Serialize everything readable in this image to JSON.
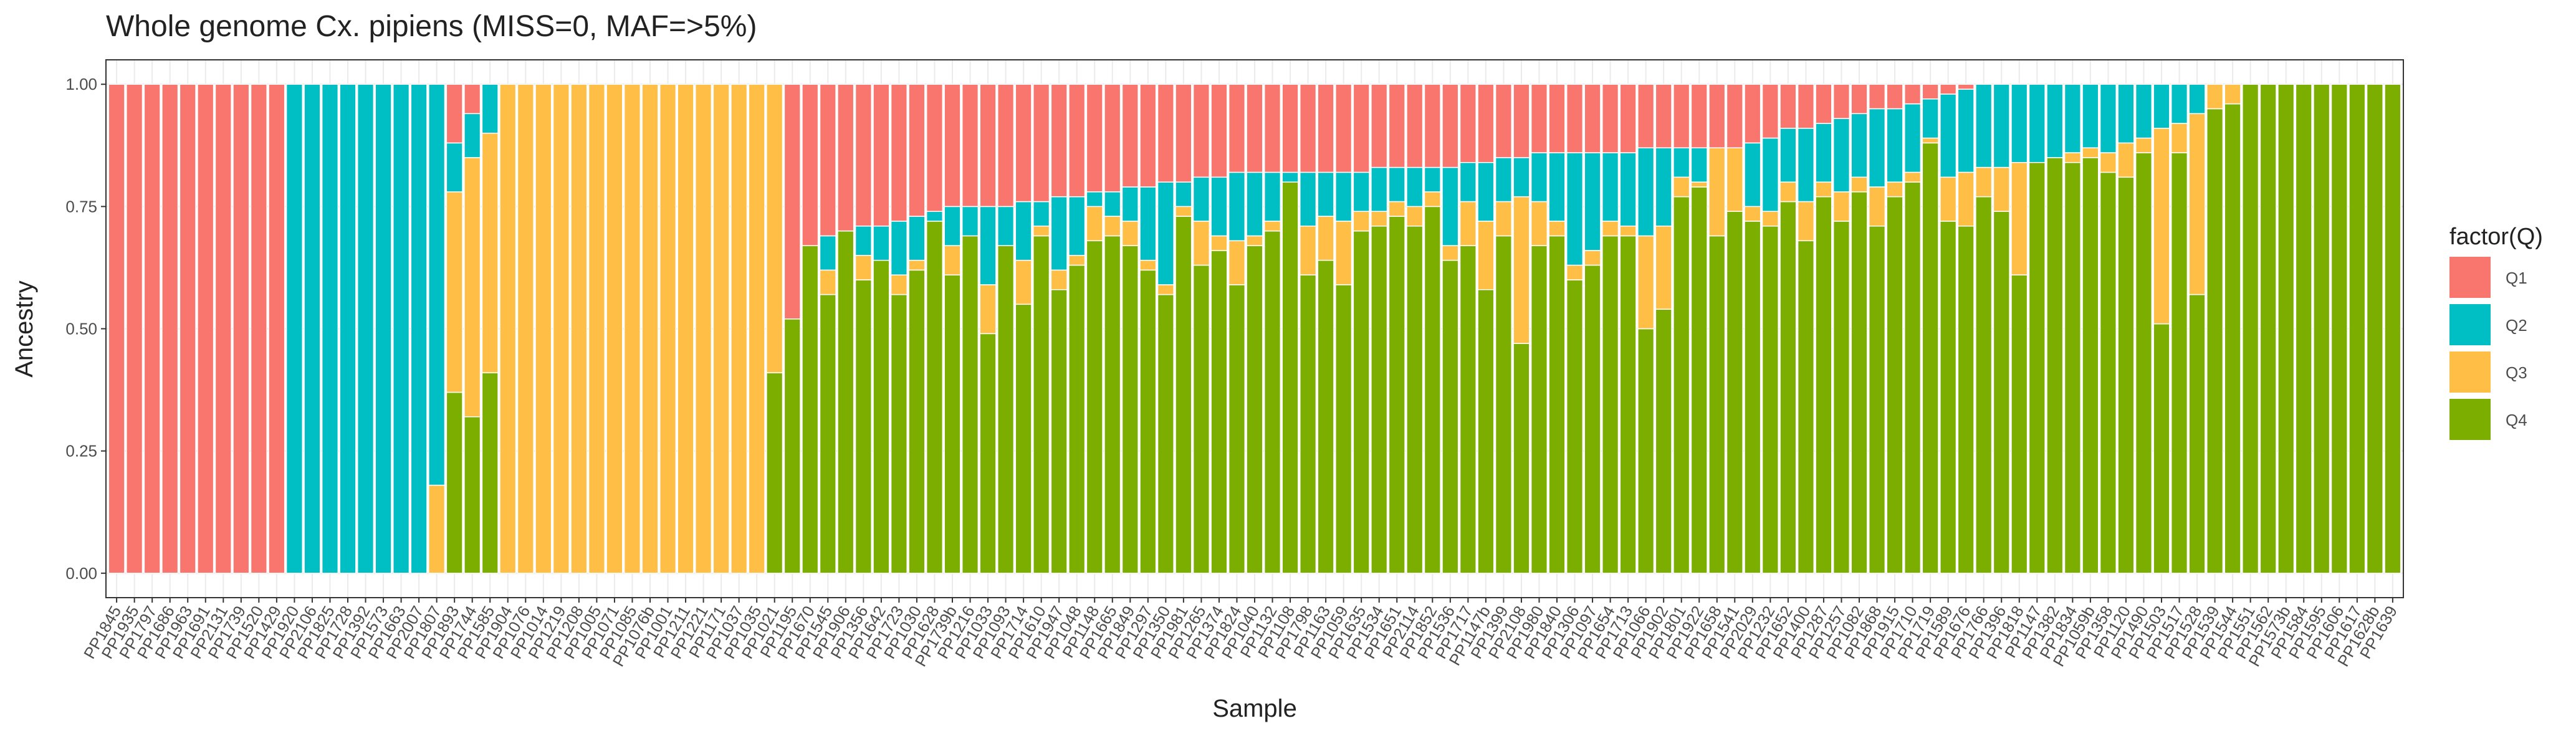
{
  "chart_data": {
    "type": "bar",
    "stacked": true,
    "title": "Whole genome Cx. pipiens (MISS=0, MAF=>5%)",
    "x_label": "Sample",
    "y_label": "Ancestry",
    "legend_title": "factor(Q)",
    "legend": "right",
    "grid": true,
    "ylim": [
      -0.05,
      1.05
    ],
    "yticks": [
      {
        "value": 0,
        "label": "0.00"
      },
      {
        "value": 0.25,
        "label": "0.25"
      },
      {
        "value": 0.5,
        "label": "0.50"
      },
      {
        "value": 0.75,
        "label": "0.75"
      },
      {
        "value": 1,
        "label": "1.00"
      }
    ],
    "categories": [
      "PP1845",
      "PP1935",
      "PP1797",
      "PP1686",
      "PP1963",
      "PP1691",
      "PP2131",
      "PP1739",
      "PP1520",
      "PP1429",
      "PP1920",
      "PP2106",
      "PP1825",
      "PP1728",
      "PP1392",
      "PP1573",
      "PP1663",
      "PP2007",
      "PP1807",
      "PP1893",
      "PP1744",
      "PP1585",
      "PP1904",
      "PP1076",
      "PP1014",
      "PP1219",
      "PP1208",
      "PP1005",
      "PP1071",
      "PP1085",
      "PP1076b",
      "PP1001",
      "PP1211",
      "PP1221",
      "PP1171",
      "PP1037",
      "PP1035",
      "PP1021",
      "PP1195",
      "PP1670",
      "PP1545",
      "PP1906",
      "PP1356",
      "PP1642",
      "PP1723",
      "PP1030",
      "PP1628",
      "PP1739b",
      "PP1216",
      "PP1033",
      "PP1093",
      "PP1714",
      "PP1610",
      "PP1947",
      "PP1048",
      "PP1148",
      "PP1665",
      "PP1849",
      "PP1297",
      "PP1350",
      "PP1981",
      "PP1265",
      "PP1374",
      "PP1824",
      "PP1040",
      "PP1132",
      "PP1108",
      "PP1798",
      "PP1163",
      "PP1059",
      "PP1635",
      "PP1534",
      "PP1651",
      "PP2114",
      "PP1852",
      "PP1536",
      "PP1717",
      "PP1147b",
      "PP1399",
      "PP2108",
      "PP1980",
      "PP1840",
      "PP1306",
      "PP1097",
      "PP1654",
      "PP1713",
      "PP1066",
      "PP1902",
      "PP1801",
      "PP1922",
      "PP1658",
      "PP1541",
      "PP2029",
      "PP1232",
      "PP1652",
      "PP1400",
      "PP1287",
      "PP1257",
      "PP1082",
      "PP1868",
      "PP1915",
      "PP1710",
      "PP1719",
      "PP1589",
      "PP1676",
      "PP1766",
      "PP1396",
      "PP1818",
      "PP1147",
      "PP1382",
      "PP1834",
      "PP1059b",
      "PP1358",
      "PP1120",
      "PP1490",
      "PP1503",
      "PP1517",
      "PP1528",
      "PP1539",
      "PP1544",
      "PP1551",
      "PP1562",
      "PP1573b",
      "PP1584",
      "PP1595",
      "PP1606",
      "PP1617",
      "PP1628b",
      "PP1639"
    ],
    "series": [
      {
        "name": "Q1",
        "color": "#F8766D",
        "values": [
          1,
          1,
          1,
          1,
          1,
          1,
          1,
          1,
          1,
          1,
          0,
          0,
          0,
          0,
          0,
          0,
          0,
          0,
          0,
          0.12,
          0.06,
          0,
          0,
          0,
          0,
          0,
          0,
          0,
          0,
          0,
          0,
          0,
          0,
          0,
          0,
          0,
          0,
          0,
          0.48,
          0.33,
          0.31,
          0.3,
          0.29,
          0.29,
          0.28,
          0.27,
          0.26,
          0.25,
          0.25,
          0.25,
          0.25,
          0.24,
          0.24,
          0.23,
          0.23,
          0.22,
          0.22,
          0.21,
          0.21,
          0.2,
          0.2,
          0.19,
          0.19,
          0.18,
          0.18,
          0.18,
          0.18,
          0.18,
          0.18,
          0.18,
          0.18,
          0.17,
          0.17,
          0.17,
          0.17,
          0.17,
          0.16,
          0.16,
          0.15,
          0.15,
          0.14,
          0.14,
          0.14,
          0.14,
          0.14,
          0.14,
          0.13,
          0.13,
          0.13,
          0.13,
          0.13,
          0.13,
          0.12,
          0.11,
          0.09,
          0.09,
          0.08,
          0.07,
          0.06,
          0.05,
          0.05,
          0.04,
          0.03,
          0.02,
          0.01,
          0,
          0,
          0,
          0,
          0,
          0,
          0,
          0,
          0,
          0,
          0,
          0,
          0,
          0,
          0,
          0,
          0,
          0,
          0,
          0,
          0,
          0,
          0,
          0
        ]
      },
      {
        "name": "Q2",
        "color": "#00BFC4",
        "values": [
          0,
          0,
          0,
          0,
          0,
          0,
          0,
          0,
          0,
          0,
          1,
          1,
          1,
          1,
          1,
          1,
          1,
          1,
          0.82,
          0.1,
          0.09,
          0.1,
          0,
          0,
          0,
          0,
          0,
          0,
          0,
          0,
          0,
          0,
          0,
          0,
          0,
          0,
          0,
          0,
          0,
          0,
          0.07,
          0,
          0.06,
          0.07,
          0.11,
          0.09,
          0.02,
          0.08,
          0.06,
          0.16,
          0.08,
          0.12,
          0.05,
          0.15,
          0.12,
          0.03,
          0.05,
          0.07,
          0.15,
          0.21,
          0.05,
          0.09,
          0.12,
          0.14,
          0.13,
          0.1,
          0.02,
          0.11,
          0.09,
          0.1,
          0.08,
          0.09,
          0.07,
          0.08,
          0.05,
          0.16,
          0.08,
          0.12,
          0.09,
          0.08,
          0.1,
          0.14,
          0.23,
          0.2,
          0.14,
          0.15,
          0.18,
          0.16,
          0.06,
          0.07,
          0,
          0,
          0.13,
          0.15,
          0.11,
          0.15,
          0.12,
          0.15,
          0.13,
          0.16,
          0.15,
          0.14,
          0.08,
          0.17,
          0.17,
          0.17,
          0.17,
          0.16,
          0.16,
          0.15,
          0.14,
          0.13,
          0.14,
          0.12,
          0.11,
          0.09,
          0.08,
          0.06,
          0,
          0,
          0,
          0,
          0,
          0,
          0,
          0,
          0,
          0,
          0
        ]
      },
      {
        "name": "Q3",
        "color": "#FFBE45",
        "values": [
          0,
          0,
          0,
          0,
          0,
          0,
          0,
          0,
          0,
          0,
          0,
          0,
          0,
          0,
          0,
          0,
          0,
          0,
          0.18,
          0.41,
          0.53,
          0.49,
          1,
          1,
          1,
          1,
          1,
          1,
          1,
          1,
          1,
          1,
          1,
          1,
          1,
          1,
          1,
          0.59,
          0,
          0,
          0.05,
          0,
          0.05,
          0,
          0.04,
          0.02,
          0,
          0.06,
          0,
          0.1,
          0,
          0.09,
          0.02,
          0.04,
          0.02,
          0.07,
          0.04,
          0.05,
          0.02,
          0.02,
          0.02,
          0.09,
          0.03,
          0.09,
          0.02,
          0.02,
          0,
          0.1,
          0.09,
          0.13,
          0.04,
          0.03,
          0.03,
          0.04,
          0.03,
          0.03,
          0.09,
          0.14,
          0.07,
          0.3,
          0.09,
          0.03,
          0.03,
          0.03,
          0.03,
          0.02,
          0.19,
          0.17,
          0.04,
          0.01,
          0.18,
          0.13,
          0.03,
          0.03,
          0.04,
          0.08,
          0.03,
          0.06,
          0.03,
          0.08,
          0.03,
          0.02,
          0.01,
          0.09,
          0.11,
          0.06,
          0.09,
          0.23,
          0,
          0,
          0.02,
          0.02,
          0.04,
          0.07,
          0.03,
          0.4,
          0.06,
          0.37,
          0.05,
          0.04,
          0,
          0,
          0,
          0,
          0,
          0,
          0,
          0,
          0
        ]
      },
      {
        "name": "Q4",
        "color": "#7CAE00",
        "values": [
          0,
          0,
          0,
          0,
          0,
          0,
          0,
          0,
          0,
          0,
          0,
          0,
          0,
          0,
          0,
          0,
          0,
          0,
          0,
          0.37,
          0.32,
          0.41,
          0,
          0,
          0,
          0,
          0,
          0,
          0,
          0,
          0,
          0,
          0,
          0,
          0,
          0,
          0,
          0.41,
          0.52,
          0.67,
          0.57,
          0.7,
          0.6,
          0.64,
          0.57,
          0.62,
          0.72,
          0.61,
          0.69,
          0.49,
          0.67,
          0.55,
          0.69,
          0.58,
          0.63,
          0.68,
          0.69,
          0.67,
          0.62,
          0.57,
          0.73,
          0.63,
          0.66,
          0.59,
          0.67,
          0.7,
          0.8,
          0.61,
          0.64,
          0.59,
          0.7,
          0.71,
          0.73,
          0.71,
          0.75,
          0.64,
          0.67,
          0.58,
          0.69,
          0.47,
          0.67,
          0.69,
          0.6,
          0.63,
          0.69,
          0.69,
          0.5,
          0.54,
          0.77,
          0.79,
          0.69,
          0.74,
          0.72,
          0.71,
          0.76,
          0.68,
          0.77,
          0.72,
          0.78,
          0.71,
          0.77,
          0.8,
          0.88,
          0.72,
          0.71,
          0.77,
          0.74,
          0.61,
          0.84,
          0.85,
          0.84,
          0.85,
          0.82,
          0.81,
          0.86,
          0.51,
          0.86,
          0.57,
          0.95,
          0.96,
          1,
          1,
          1,
          1,
          1,
          1,
          1,
          1,
          1
        ]
      }
    ]
  }
}
